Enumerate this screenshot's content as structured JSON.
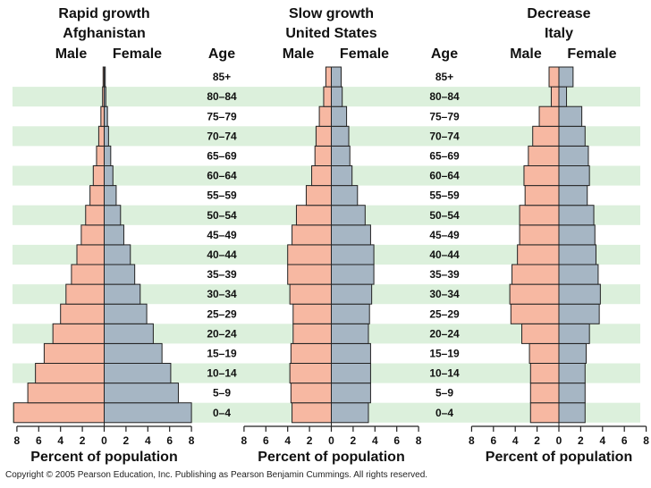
{
  "age_header": "Age",
  "copyright": "Copyright © 2005 Pearson Education, Inc. Publishing as Pearson Benjamin Cummings. All rights reserved.",
  "colors": {
    "male": "#f7b8a2",
    "female": "#a6b6c4",
    "band": "#dcf0dc",
    "stroke": "#222222"
  },
  "chart_data": [
    {
      "type": "bar",
      "orientation": "horizontal-population-pyramid",
      "title": [
        "Rapid growth",
        "Afghanistan"
      ],
      "male_label": "Male",
      "female_label": "Female",
      "xlabel": "Percent of population",
      "xlim": [
        -8,
        8
      ],
      "ticks": [
        "8",
        "6",
        "4",
        "2",
        "0",
        "2",
        "4",
        "6",
        "8"
      ],
      "categories": [
        "0–4",
        "5–9",
        "10–14",
        "15–19",
        "20–24",
        "25–29",
        "30–34",
        "35–39",
        "40–44",
        "45–49",
        "50–54",
        "55–59",
        "60–64",
        "65–69",
        "70–74",
        "75–79",
        "80–84",
        "85+"
      ],
      "series": [
        {
          "name": "Male",
          "values": [
            8.3,
            7.0,
            6.3,
            5.5,
            4.7,
            4.0,
            3.5,
            3.0,
            2.5,
            2.1,
            1.7,
            1.3,
            1.0,
            0.7,
            0.5,
            0.3,
            0.15,
            0.1
          ]
        },
        {
          "name": "Female",
          "values": [
            8.0,
            6.8,
            6.1,
            5.3,
            4.5,
            3.9,
            3.3,
            2.8,
            2.4,
            1.8,
            1.5,
            1.1,
            0.8,
            0.6,
            0.4,
            0.3,
            0.15,
            0.1
          ]
        }
      ]
    },
    {
      "type": "bar",
      "orientation": "horizontal-population-pyramid",
      "title": [
        "Slow growth",
        "United States"
      ],
      "male_label": "Male",
      "female_label": "Female",
      "xlabel": "Percent of population",
      "xlim": [
        -8,
        8
      ],
      "ticks": [
        "8",
        "6",
        "4",
        "2",
        "0",
        "2",
        "4",
        "6",
        "8"
      ],
      "categories": [
        "0–4",
        "5–9",
        "10–14",
        "15–19",
        "20–24",
        "25–29",
        "30–34",
        "35–39",
        "40–44",
        "45–49",
        "50–54",
        "55–59",
        "60–64",
        "65–69",
        "70–74",
        "75–79",
        "80–84",
        "85+"
      ],
      "series": [
        {
          "name": "Male",
          "values": [
            3.6,
            3.7,
            3.8,
            3.7,
            3.5,
            3.5,
            3.8,
            4.0,
            4.0,
            3.6,
            3.2,
            2.3,
            1.8,
            1.5,
            1.4,
            1.1,
            0.7,
            0.5
          ]
        },
        {
          "name": "Female",
          "values": [
            3.4,
            3.6,
            3.6,
            3.6,
            3.4,
            3.5,
            3.7,
            3.9,
            3.9,
            3.6,
            3.1,
            2.4,
            1.9,
            1.7,
            1.6,
            1.4,
            1.0,
            0.9
          ]
        }
      ]
    },
    {
      "type": "bar",
      "orientation": "horizontal-population-pyramid",
      "title": [
        "Decrease",
        "Italy"
      ],
      "male_label": "Male",
      "female_label": "Female",
      "xlabel": "Percent of population",
      "xlim": [
        -8,
        8
      ],
      "ticks": [
        "8",
        "6",
        "4",
        "2",
        "0",
        "2",
        "4",
        "6",
        "8"
      ],
      "categories": [
        "0–4",
        "5–9",
        "10–14",
        "15–19",
        "20–24",
        "25–29",
        "30–34",
        "35–39",
        "40–44",
        "45–49",
        "50–54",
        "55–59",
        "60–64",
        "65–69",
        "70–74",
        "75–79",
        "80–84",
        "85+"
      ],
      "series": [
        {
          "name": "Male",
          "values": [
            2.6,
            2.6,
            2.6,
            2.7,
            3.4,
            4.4,
            4.5,
            4.3,
            3.8,
            3.6,
            3.6,
            3.1,
            3.2,
            2.8,
            2.4,
            1.8,
            0.7,
            0.9
          ]
        },
        {
          "name": "Female",
          "values": [
            2.4,
            2.4,
            2.4,
            2.5,
            2.8,
            3.7,
            3.8,
            3.6,
            3.4,
            3.3,
            3.2,
            2.6,
            2.8,
            2.7,
            2.4,
            2.1,
            0.7,
            1.3
          ]
        }
      ]
    }
  ]
}
